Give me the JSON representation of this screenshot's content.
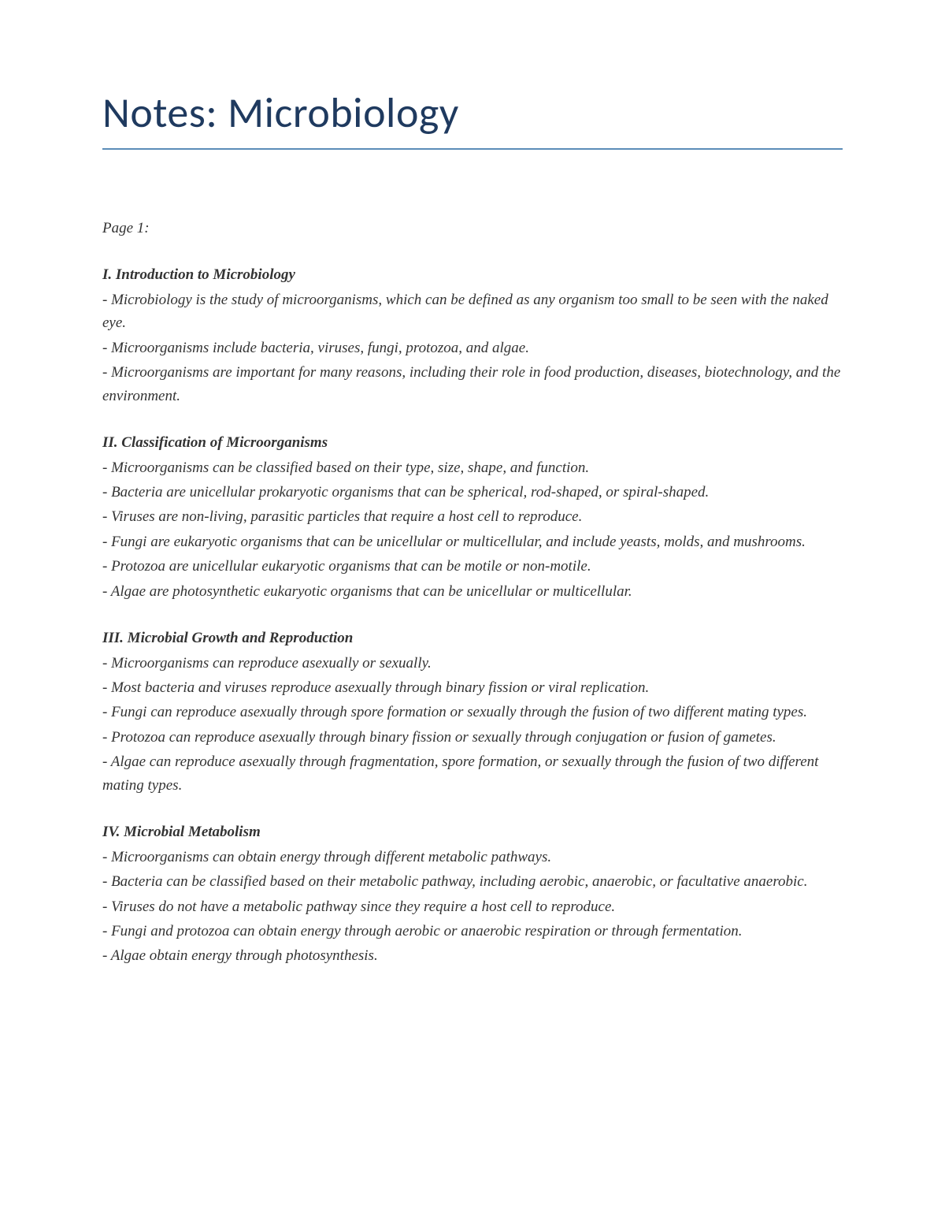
{
  "title": "Notes: Microbiology",
  "page_label": "Page 1:",
  "title_color": "#1f3a5f",
  "underline_color": "#5b8db8",
  "text_color": "#333333",
  "background_color": "#ffffff",
  "title_font_family": "Calibri",
  "body_font_family": "Georgia",
  "title_fontsize": 54,
  "body_fontsize": 19,
  "sections": [
    {
      "heading": "I. Introduction to Microbiology",
      "bullets": [
        "- Microbiology is the study of microorganisms, which can be defined as any organism too small to be seen with the naked eye.",
        "- Microorganisms include bacteria, viruses, fungi, protozoa, and algae.",
        "- Microorganisms are important for many reasons, including their role in food production, diseases, biotechnology, and the environment."
      ]
    },
    {
      "heading": "II. Classification of Microorganisms",
      "bullets": [
        "- Microorganisms can be classified based on their type, size, shape, and function.",
        "- Bacteria are unicellular prokaryotic organisms that can be spherical, rod-shaped, or spiral-shaped.",
        "- Viruses are non-living, parasitic particles that require a host cell to reproduce.",
        "- Fungi are eukaryotic organisms that can be unicellular or multicellular, and include yeasts, molds, and mushrooms.",
        "- Protozoa are unicellular eukaryotic organisms that can be motile or non-motile.",
        "- Algae are photosynthetic eukaryotic organisms that can be unicellular or multicellular."
      ]
    },
    {
      "heading": "III. Microbial Growth and Reproduction",
      "bullets": [
        "- Microorganisms can reproduce asexually or sexually.",
        "- Most bacteria and viruses reproduce asexually through binary fission or viral replication.",
        "- Fungi can reproduce asexually through spore formation or sexually through the fusion of two different mating types.",
        "- Protozoa can reproduce asexually through binary fission or sexually through conjugation or fusion of gametes.",
        "- Algae can reproduce asexually through fragmentation, spore formation, or sexually through the fusion of two different mating types."
      ]
    },
    {
      "heading": "IV. Microbial Metabolism",
      "bullets": [
        "- Microorganisms can obtain energy through different metabolic pathways.",
        "- Bacteria can be classified based on their metabolic pathway, including aerobic, anaerobic, or facultative anaerobic.",
        "- Viruses do not have a metabolic pathway since they require a host cell to reproduce.",
        "- Fungi and protozoa can obtain energy through aerobic or anaerobic respiration or through fermentation.",
        "- Algae obtain energy through photosynthesis."
      ]
    }
  ]
}
